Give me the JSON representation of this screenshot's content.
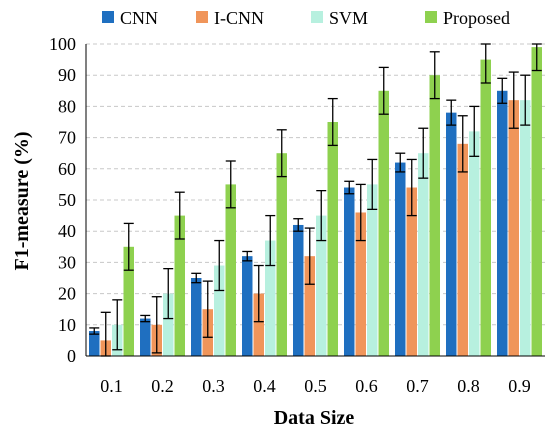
{
  "chart_data": {
    "type": "bar",
    "title": "",
    "xlabel": "Data Size",
    "ylabel": "F1-measure (%)",
    "ylim": [
      0,
      100
    ],
    "yticks": [
      0,
      10,
      20,
      30,
      40,
      50,
      60,
      70,
      80,
      90,
      100
    ],
    "grid": "horizontal dashed",
    "legend_position": "top",
    "categories": [
      "0.1",
      "0.2",
      "0.3",
      "0.4",
      "0.5",
      "0.6",
      "0.7",
      "0.8",
      "0.9"
    ],
    "series": [
      {
        "name": "CNN",
        "color": "#1f6fc0",
        "values": [
          8,
          12,
          25,
          32,
          42,
          54,
          62,
          78,
          85
        ],
        "errors": [
          1,
          1,
          1.5,
          1.5,
          2,
          2,
          3,
          4,
          4
        ]
      },
      {
        "name": "I-CNN",
        "color": "#f0955a",
        "values": [
          5,
          10,
          15,
          20,
          32,
          46,
          54,
          68,
          82
        ],
        "errors": [
          9,
          9,
          9,
          9,
          9,
          9,
          9,
          9,
          9
        ]
      },
      {
        "name": "SVM",
        "color": "#b7f0df",
        "values": [
          10,
          20,
          29,
          37,
          45,
          55,
          65,
          72,
          82
        ],
        "errors": [
          8,
          8,
          8,
          8,
          8,
          8,
          8,
          8,
          8
        ]
      },
      {
        "name": "Proposed",
        "color": "#8ed14f",
        "values": [
          35,
          45,
          55,
          65,
          75,
          85,
          90,
          95,
          99
        ],
        "errors": [
          7.5,
          7.5,
          7.5,
          7.5,
          7.5,
          7.5,
          7.5,
          7.5,
          7.5
        ]
      }
    ]
  }
}
